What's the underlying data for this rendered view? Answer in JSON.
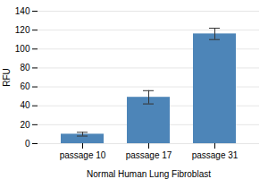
{
  "chart_data": {
    "type": "bar",
    "categories": [
      "passage 10",
      "passage 17",
      "passage 31"
    ],
    "values": [
      10,
      49,
      116
    ],
    "errors": [
      2,
      7,
      6
    ],
    "color": "#4d85b8",
    "ylabel": "RFU",
    "xlabel": "Normal Human Lung Fibroblast",
    "ylim": [
      0,
      140
    ],
    "yticks": [
      0,
      20,
      40,
      60,
      80,
      100,
      120,
      140
    ],
    "grid": true
  }
}
